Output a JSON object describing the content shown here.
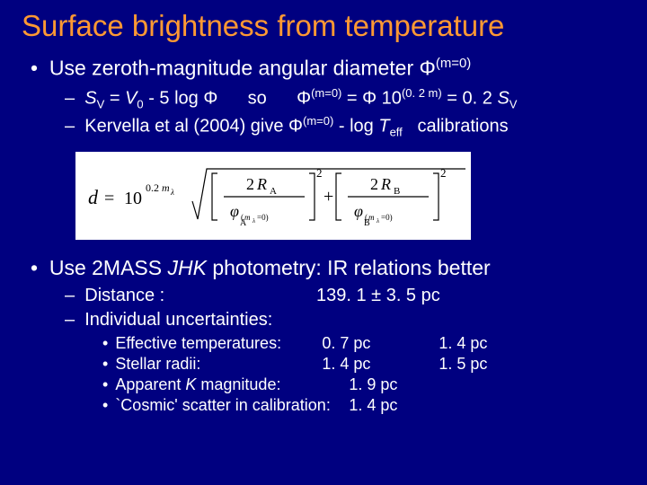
{
  "title": "Surface brightness from temperature",
  "bullets": {
    "main1_pre": "Use zeroth-magnitude angular diameter Φ",
    "main1_sup": "(m=0)",
    "sub1_1a": "S",
    "sub1_1a_sub": "V",
    "sub1_1b": " = ",
    "sub1_1c": "V",
    "sub1_1c_sub": "0",
    "sub1_1d": " - 5 log Φ      so      Φ",
    "sub1_1e_sup": "(m=0)",
    "sub1_1f": " = Φ 10",
    "sub1_1g_sup": "(0. 2 m)",
    "sub1_1h": " = 0. 2 ",
    "sub1_1i": "S",
    "sub1_1i_sub": "V",
    "sub1_2a": "Kervella et al (2004)  give   Φ",
    "sub1_2b_sup": "(m=0)",
    "sub1_2c": " - log ",
    "sub1_2d": "T",
    "sub1_2d_sub": "eff",
    "sub1_2e": "   calibrations",
    "main2_a": "Use 2MASS ",
    "main2_b": "JHK",
    "main2_c": " photometry: IR relations better",
    "sub2_1": "Distance :",
    "sub2_1_val": "139. 1 ± 3. 5 pc",
    "sub2_2": "Individual uncertainties:",
    "uncert": [
      {
        "label": "Effective temperatures:",
        "v1": "0. 7 pc",
        "v2": "1. 4 pc"
      },
      {
        "label": "Stellar radii:",
        "v1": "1. 4 pc",
        "v2": "1. 5 pc"
      },
      {
        "label": "Apparent K magnitude:",
        "v1": "1. 9 pc",
        "v2": ""
      },
      {
        "label": "`Cosmic' scatter in calibration:",
        "v1": "1. 4 pc",
        "v2": ""
      }
    ]
  },
  "colors": {
    "bg": "#000080",
    "title": "#ff9933",
    "text": "#ffffff",
    "formula_bg": "#ffffff",
    "formula_fg": "#000000"
  },
  "fonts": {
    "title_size": 33,
    "main_size": 23,
    "sub_size": 20,
    "subsub_size": 18
  }
}
